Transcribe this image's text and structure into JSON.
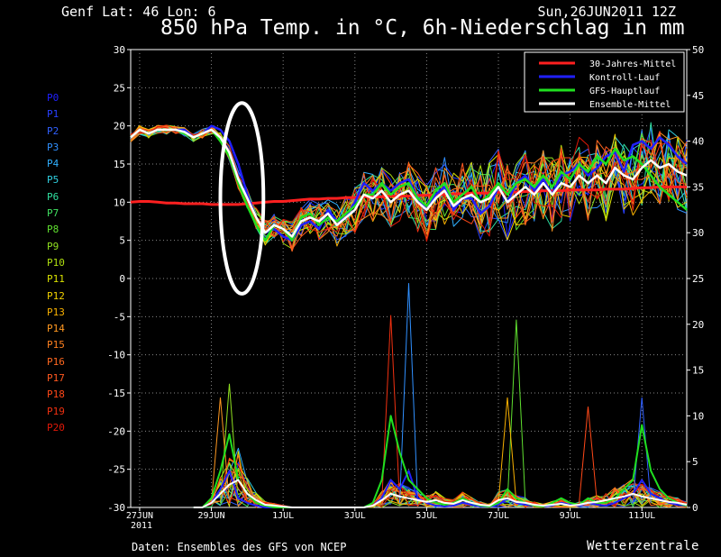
{
  "header": {
    "location": "Genf   Lat: 46 Lon: 6",
    "run": "Sun,26JUN2011 12Z",
    "title": "850 hPa Temp. in °C, 6h-Niederschlag in mm"
  },
  "footer": {
    "credit": "Daten: Ensembles des GFS von NCEP",
    "brand": "Wetterzentrale"
  },
  "members": [
    {
      "label": "P0",
      "color": "#2020ff"
    },
    {
      "label": "P1",
      "color": "#2840ff"
    },
    {
      "label": "P2",
      "color": "#3060ff"
    },
    {
      "label": "P3",
      "color": "#3090ff"
    },
    {
      "label": "P4",
      "color": "#30b0ff"
    },
    {
      "label": "P5",
      "color": "#30d0e0"
    },
    {
      "label": "P6",
      "color": "#30e0a0"
    },
    {
      "label": "P7",
      "color": "#40e060"
    },
    {
      "label": "P8",
      "color": "#60e030"
    },
    {
      "label": "P9",
      "color": "#90e020"
    },
    {
      "label": "P10",
      "color": "#b0e010"
    },
    {
      "label": "P11",
      "color": "#d8e000"
    },
    {
      "label": "P12",
      "color": "#f0d000"
    },
    {
      "label": "P13",
      "color": "#f8b000"
    },
    {
      "label": "P14",
      "color": "#ff9820"
    },
    {
      "label": "P15",
      "color": "#ff8020"
    },
    {
      "label": "P16",
      "color": "#ff6820"
    },
    {
      "label": "P17",
      "color": "#ff5820"
    },
    {
      "label": "P18",
      "color": "#ff4818"
    },
    {
      "label": "P19",
      "color": "#f03010"
    },
    {
      "label": "P20",
      "color": "#e01808"
    }
  ],
  "chart_data": {
    "type": "line",
    "x_ticks": [
      {
        "label": "27JUN",
        "sub": "2011",
        "day": 0
      },
      {
        "label": "29JUN",
        "day": 2
      },
      {
        "label": "1JUL",
        "day": 4
      },
      {
        "label": "3JUL",
        "day": 6
      },
      {
        "label": "5JUL",
        "day": 8
      },
      {
        "label": "7JUL",
        "day": 10
      },
      {
        "label": "9JUL",
        "day": 12
      },
      {
        "label": "11JUL",
        "day": 14
      }
    ],
    "xlim_days": [
      -0.25,
      15.25
    ],
    "y_left": {
      "ylim": [
        -30,
        30
      ],
      "ticks": [
        -30,
        -25,
        -20,
        -15,
        -10,
        -5,
        0,
        5,
        10,
        15,
        20,
        25,
        30
      ]
    },
    "y_right": {
      "ylim": [
        0,
        50
      ],
      "ticks": [
        0,
        5,
        10,
        15,
        20,
        25,
        30,
        35,
        40,
        45,
        50
      ]
    },
    "grid": true,
    "legend_position": "top-right",
    "legend": [
      {
        "name": "30-Jahres-Mittel",
        "color": "#ff2020"
      },
      {
        "name": "Kontroll-Lauf",
        "color": "#2020ff"
      },
      {
        "name": "GFS-Hauptlauf",
        "color": "#20e020"
      },
      {
        "name": "Ensemble-Mittel",
        "color": "#ffffff"
      }
    ],
    "temp_x_days": [
      -0.25,
      0,
      0.25,
      0.5,
      0.75,
      1,
      1.25,
      1.5,
      1.75,
      2,
      2.25,
      2.5,
      2.75,
      3,
      3.25,
      3.5,
      3.75,
      4,
      4.25,
      4.5,
      4.75,
      5,
      5.25,
      5.5,
      5.75,
      6,
      6.25,
      6.5,
      6.75,
      7,
      7.25,
      7.5,
      7.75,
      8,
      8.25,
      8.5,
      8.75,
      9,
      9.25,
      9.5,
      9.75,
      10,
      10.25,
      10.5,
      10.75,
      11,
      11.25,
      11.5,
      11.75,
      12,
      12.25,
      12.5,
      12.75,
      13,
      13.25,
      13.5,
      13.75,
      14,
      14.25,
      14.5,
      14.75,
      15,
      15.25
    ],
    "climate_temp": [
      10,
      10.1,
      10.1,
      10,
      9.9,
      9.9,
      9.8,
      9.8,
      9.8,
      9.7,
      9.7,
      9.7,
      9.7,
      9.8,
      9.9,
      10,
      10.1,
      10.1,
      10.2,
      10.3,
      10.4,
      10.4,
      10.5,
      10.5,
      10.6,
      10.6,
      10.7,
      10.7,
      10.7,
      10.8,
      10.8,
      10.8,
      10.9,
      10.9,
      11,
      11,
      11.1,
      11.1,
      11.2,
      11.2,
      11.2,
      11.3,
      11.3,
      11.3,
      11.4,
      11.4,
      11.5,
      11.5,
      11.5,
      11.6,
      11.6,
      11.6,
      11.6,
      11.7,
      11.7,
      11.7,
      11.8,
      11.9,
      11.9,
      12,
      12,
      12,
      12
    ],
    "ensemble_mean_temp": [
      18.5,
      19.5,
      19,
      19.5,
      19.5,
      19.5,
      19.2,
      18.5,
      19,
      19.5,
      18.5,
      16.5,
      13,
      10.5,
      8,
      6,
      7,
      6.5,
      5.5,
      7.5,
      8,
      7.5,
      8.5,
      7,
      8,
      9,
      11,
      10.5,
      11.5,
      10,
      11,
      11.5,
      10,
      9,
      10.5,
      11.5,
      9.5,
      10.5,
      11,
      10,
      10.5,
      12,
      10,
      11,
      12,
      11,
      12.5,
      11,
      12.5,
      12,
      13.5,
      12.5,
      13.5,
      12.5,
      14.5,
      13.5,
      13,
      14.5,
      15.5,
      14.5,
      15,
      14,
      13.5
    ],
    "control_temp": [
      18.5,
      19.5,
      19,
      19.5,
      19.5,
      19.5,
      19.5,
      18.5,
      19,
      20,
      19.5,
      18,
      15,
      11,
      8,
      6,
      6.5,
      5.5,
      5,
      7,
      7.5,
      6.5,
      9,
      7.5,
      8,
      10,
      12.5,
      11.5,
      12.5,
      11.5,
      12.5,
      13,
      10.5,
      9,
      11,
      12,
      9,
      10.5,
      10.5,
      8.5,
      9.5,
      12,
      10,
      12.5,
      13.5,
      11.5,
      13,
      11,
      13.5,
      14,
      15,
      13.5,
      14.5,
      16,
      16.5,
      14,
      17.5,
      18,
      17,
      18.5,
      17.5,
      16,
      15
    ],
    "operational_temp": [
      18.5,
      19.5,
      19,
      19.5,
      19.5,
      19.5,
      19,
      18.5,
      19,
      19.5,
      18,
      16,
      12.5,
      9.5,
      7,
      5,
      7,
      6.5,
      5,
      8,
      8.5,
      7,
      8,
      7.5,
      8.5,
      9.5,
      11,
      11,
      12.5,
      11,
      12,
      12.5,
      10.5,
      9.5,
      11.5,
      12.5,
      10,
      11,
      12,
      10,
      11,
      12.5,
      11,
      12.5,
      13,
      12,
      13.5,
      12,
      14,
      13,
      15,
      14,
      16,
      15,
      17,
      15.5,
      16,
      15,
      13.5,
      12,
      11,
      10,
      9
    ],
    "precip_x_days": [
      1.5,
      1.75,
      2,
      2.25,
      2.5,
      2.75,
      3,
      3.25,
      3.5,
      3.75,
      4,
      4.25,
      5,
      5.5,
      6,
      6.25,
      6.5,
      6.75,
      7,
      7.25,
      7.5,
      7.75,
      8,
      8.25,
      8.5,
      8.75,
      9,
      9.25,
      9.5,
      9.75,
      10,
      10.25,
      10.5,
      10.75,
      11,
      11.25,
      11.5,
      11.75,
      12,
      12.25,
      12.5,
      12.75,
      13,
      13.25,
      13.5,
      13.75,
      14,
      14.25,
      14.5,
      14.75,
      15,
      15.25
    ],
    "ensemble_mean_precip": [
      0,
      0,
      0.5,
      1.5,
      2.5,
      3,
      1.5,
      0.8,
      0.3,
      0.2,
      0.1,
      0,
      0,
      0,
      0,
      0,
      0.2,
      0.8,
      1.5,
      1.2,
      1,
      0.8,
      0.6,
      0.8,
      0.5,
      0.4,
      0.8,
      0.5,
      0.3,
      0.2,
      0.8,
      1,
      0.6,
      0.5,
      0.3,
      0.2,
      0.3,
      0.4,
      0.2,
      0.3,
      0.5,
      0.6,
      0.8,
      1,
      1.2,
      1.5,
      1.2,
      1,
      0.8,
      0.6,
      0.5,
      0.3
    ],
    "operational_precip": [
      0,
      0,
      1,
      4,
      8,
      3,
      1.5,
      0.5,
      0.2,
      0,
      0,
      0,
      0,
      0,
      0,
      0,
      0.5,
      3,
      10,
      6,
      3,
      2,
      1,
      0.5,
      0.3,
      0.5,
      1,
      0.5,
      0.2,
      0.1,
      0.5,
      2,
      1,
      0.5,
      0.2,
      0.1,
      0.5,
      1,
      0.5,
      0.3,
      1,
      0.5,
      0.5,
      1,
      2,
      3,
      9,
      4,
      2,
      1,
      0.5,
      0.2
    ],
    "control_precip": [
      0,
      0,
      0.5,
      2,
      4,
      1,
      0.5,
      0.2,
      0,
      0,
      0,
      0,
      0,
      0,
      0,
      0,
      0.2,
      1,
      3,
      2,
      4,
      1,
      0.5,
      0.2,
      0.1,
      0.2,
      0.5,
      0.3,
      0.1,
      0.1,
      0.3,
      1,
      0.5,
      0.3,
      0.2,
      0.1,
      0.2,
      0.5,
      0.3,
      0.2,
      0.5,
      0.3,
      0.2,
      0.5,
      1,
      1.5,
      3,
      1.5,
      1,
      0.5,
      0.3,
      0.2
    ],
    "precip_peaks": [
      {
        "day": 2.5,
        "mm": 13.5
      },
      {
        "day": 2.25,
        "mm": 12
      },
      {
        "day": 7,
        "mm": 21
      },
      {
        "day": 7.5,
        "mm": 24.5
      },
      {
        "day": 10.5,
        "mm": 20.5
      },
      {
        "day": 10.25,
        "mm": 12
      },
      {
        "day": 12.5,
        "mm": 11
      },
      {
        "day": 14,
        "mm": 12
      }
    ],
    "annotation_ellipse": {
      "center_day": 2.85,
      "center_temp": 10.5,
      "rx_days": 0.6,
      "ry_temp": 12.5
    }
  }
}
